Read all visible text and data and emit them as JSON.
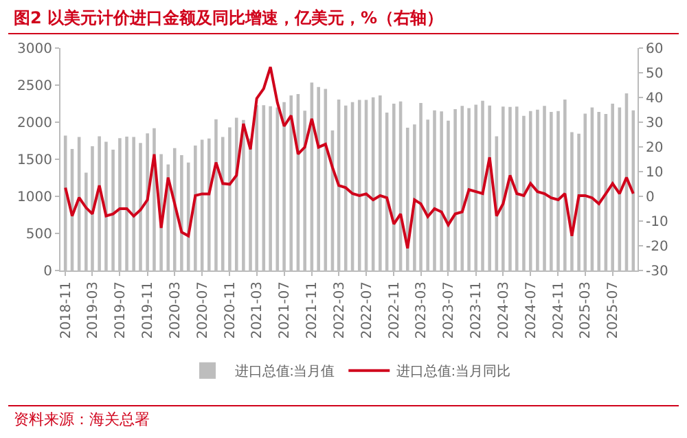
{
  "chart_data": {
    "type": "bar",
    "title": "图2  以美元计价进口金额及同比增速，亿美元，%（右轴）",
    "x": [
      "2018-11",
      "2018-12",
      "2019-01",
      "2019-02",
      "2019-03",
      "2019-04",
      "2019-05",
      "2019-06",
      "2019-07",
      "2019-08",
      "2019-09",
      "2019-10",
      "2019-11",
      "2019-12",
      "2020-01",
      "2020-02",
      "2020-03",
      "2020-04",
      "2020-05",
      "2020-06",
      "2020-07",
      "2020-08",
      "2020-09",
      "2020-10",
      "2020-11",
      "2020-12",
      "2021-01",
      "2021-02",
      "2021-03",
      "2021-04",
      "2021-05",
      "2021-06",
      "2021-07",
      "2021-08",
      "2021-09",
      "2021-10",
      "2021-11",
      "2021-12",
      "2022-01",
      "2022-02",
      "2022-03",
      "2022-04",
      "2022-05",
      "2022-06",
      "2022-07",
      "2022-08",
      "2022-09",
      "2022-10",
      "2022-11",
      "2022-12",
      "2023-01",
      "2023-02",
      "2023-03",
      "2023-04",
      "2023-05",
      "2023-06",
      "2023-07",
      "2023-08",
      "2023-09",
      "2023-10",
      "2023-11",
      "2023-12",
      "2024-01",
      "2024-02",
      "2024-03",
      "2024-04",
      "2024-05",
      "2024-06",
      "2024-07",
      "2024-08",
      "2024-09",
      "2024-10",
      "2024-11",
      "2024-12",
      "2025-01",
      "2025-02",
      "2025-03",
      "2025-04",
      "2025-05",
      "2025-06",
      "2025-07",
      "2025-08",
      "2025-09",
      "2025-10"
    ],
    "series": [
      {
        "name": "进口总值:当月值",
        "color": "#bdbdbd",
        "values": [
          1820,
          1640,
          1800,
          1320,
          1675,
          1810,
          1735,
          1630,
          1785,
          1805,
          1800,
          1720,
          1850,
          1920,
          1570,
          1430,
          1650,
          1555,
          1455,
          1685,
          1765,
          1780,
          2040,
          1800,
          1930,
          2060,
          2030,
          1780,
          2230,
          2230,
          2215,
          2200,
          2270,
          2360,
          2380,
          2155,
          2535,
          2475,
          2450,
          1890,
          2305,
          2225,
          2270,
          2300,
          2300,
          2335,
          2360,
          2130,
          2250,
          2280,
          1925,
          1970,
          2260,
          2035,
          2160,
          2145,
          2020,
          2175,
          2220,
          2190,
          2235,
          2290,
          2225,
          1810,
          2210,
          2205,
          2210,
          2085,
          2150,
          2170,
          2220,
          2140,
          2150,
          2305,
          1865,
          1845,
          2115,
          2200,
          2140,
          2110,
          2250,
          2200,
          2390,
          2160
        ]
      },
      {
        "name": "进口总值:当月同比",
        "type": "line",
        "axis": "y2",
        "color": "#d0021b",
        "values": [
          3.5,
          -7.9,
          -0.5,
          -4.6,
          -7.1,
          4.4,
          -7.9,
          -7.1,
          -5,
          -5,
          -8,
          -5.5,
          -1.4,
          17,
          -12.8,
          7.6,
          -3,
          -14.5,
          -16,
          0.3,
          1,
          1,
          13.7,
          5.2,
          4.9,
          8.5,
          29.4,
          19,
          39.6,
          43.6,
          52.3,
          37.9,
          28.4,
          32.7,
          17.1,
          19.9,
          31.4,
          19.9,
          21.1,
          11.7,
          4.4,
          3.5,
          1.1,
          0.3,
          1,
          -1.4,
          0.3,
          -0.6,
          -11.2,
          -7.1,
          -21,
          -1.4,
          -3,
          -8.2,
          -5,
          -6.3,
          -11.5,
          -7.1,
          -6.3,
          2.7,
          1.9,
          1.1,
          15.8,
          -7.9,
          -3,
          8.5,
          1.1,
          0.3,
          5.2,
          1.9,
          1.1,
          -0.6,
          -1.4,
          1.1,
          -16,
          0.3,
          0.3,
          -0.6,
          -3,
          1.1,
          5.2,
          1.1,
          7.6,
          1.1
        ]
      }
    ],
    "xlim": [
      "2018-10-10",
      "2025-10-20"
    ],
    "xticks": [
      "2018-11",
      "2019-03",
      "2019-07",
      "2019-11",
      "2020-03",
      "2020-07",
      "2020-11",
      "2021-03",
      "2021-07",
      "2021-11",
      "2022-03",
      "2022-07",
      "2022-11",
      "2023-03",
      "2023-07",
      "2023-11",
      "2024-03",
      "2024-07",
      "2024-11",
      "2025-03",
      "2025-07"
    ],
    "ylim": [
      0,
      3000
    ],
    "yticks": [
      0,
      500,
      1000,
      1500,
      2000,
      2500,
      3000
    ],
    "y2lim": [
      -30,
      60
    ],
    "y2ticks": [
      -30,
      -20,
      -10,
      0,
      10,
      20,
      30,
      40,
      50,
      60
    ],
    "grid": false,
    "legend": "bottom",
    "marker": "none",
    "line_style": "solid",
    "annotations": [
      "资料来源：海关总署"
    ]
  }
}
